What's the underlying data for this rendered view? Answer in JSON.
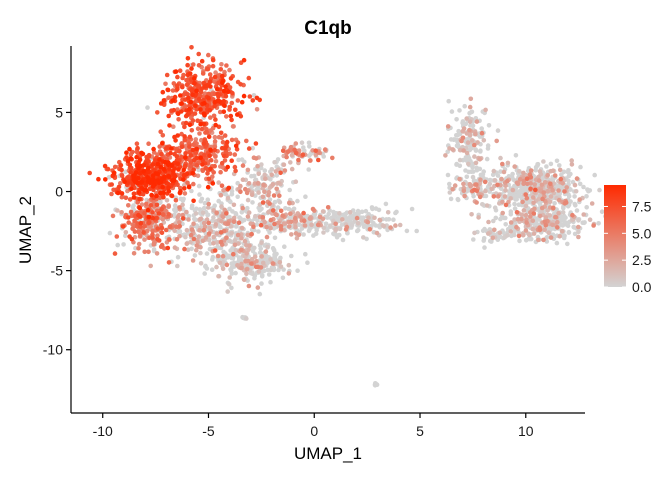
{
  "chart_data": {
    "type": "scatter",
    "title": "C1qb",
    "xlabel": "UMAP_1",
    "ylabel": "UMAP_2",
    "xlim": [
      -11.5,
      12.8
    ],
    "ylim": [
      -14,
      9.2
    ],
    "xticks": [
      -10,
      -5,
      0,
      5,
      10
    ],
    "yticks": [
      5,
      0,
      -5,
      -10
    ],
    "grid": false,
    "legend": {
      "placement": "right",
      "type": "colorbar",
      "ticks": [
        "7.5",
        "5.0",
        "2.5",
        "0.0"
      ],
      "tick_values": [
        7.5,
        5.0,
        2.5,
        0.0
      ],
      "range": [
        0,
        9.5
      ],
      "color_low": "#d3d3d3",
      "color_high": "#ff2a00"
    },
    "clusters": [
      {
        "cx": -5.2,
        "cy": 6.0,
        "sx": 0.9,
        "sy": 1.1,
        "n": 380,
        "expr": 7.0
      },
      {
        "cx": -7.8,
        "cy": 1.0,
        "sx": 0.9,
        "sy": 0.7,
        "n": 420,
        "expr": 8.0
      },
      {
        "cx": -5.5,
        "cy": 2.2,
        "sx": 1.0,
        "sy": 0.8,
        "n": 260,
        "expr": 6.2
      },
      {
        "cx": -7.8,
        "cy": -1.8,
        "sx": 0.8,
        "sy": 1.0,
        "n": 260,
        "expr": 5.0
      },
      {
        "cx": -4.8,
        "cy": -2.2,
        "sx": 1.2,
        "sy": 1.0,
        "n": 380,
        "expr": 2.0
      },
      {
        "cx": -3.0,
        "cy": -4.5,
        "sx": 0.9,
        "sy": 0.6,
        "n": 220,
        "expr": 1.5
      },
      {
        "cx": -2.5,
        "cy": 0.2,
        "sx": 0.8,
        "sy": 1.0,
        "n": 160,
        "expr": 2.0
      },
      {
        "cx": -1.3,
        "cy": -1.8,
        "sx": 0.8,
        "sy": 0.5,
        "n": 110,
        "expr": 2.5
      },
      {
        "cx": -0.6,
        "cy": 2.5,
        "sx": 0.6,
        "sy": 0.3,
        "n": 60,
        "expr": 3.5
      },
      {
        "cx": 1.6,
        "cy": -2.0,
        "sx": 1.2,
        "sy": 0.4,
        "n": 220,
        "expr": 0.9
      },
      {
        "cx": 7.3,
        "cy": 3.3,
        "sx": 0.5,
        "sy": 1.0,
        "n": 160,
        "expr": 1.6
      },
      {
        "cx": 7.6,
        "cy": 0.3,
        "sx": 0.6,
        "sy": 0.5,
        "n": 90,
        "expr": 2.0
      },
      {
        "cx": 10.5,
        "cy": 0.2,
        "sx": 1.1,
        "sy": 0.8,
        "n": 480,
        "expr": 1.6
      },
      {
        "cx": 10.8,
        "cy": -2.0,
        "sx": 1.0,
        "sy": 0.6,
        "n": 260,
        "expr": 1.4
      },
      {
        "cx": 8.4,
        "cy": -2.6,
        "sx": 0.5,
        "sy": 0.3,
        "n": 40,
        "expr": 1.0
      },
      {
        "cx": -3.3,
        "cy": -8.0,
        "sx": 0.08,
        "sy": 0.08,
        "n": 8,
        "expr": 0.5
      },
      {
        "cx": 2.9,
        "cy": -12.2,
        "sx": 0.05,
        "sy": 0.05,
        "n": 5,
        "expr": 0.2
      }
    ],
    "xtick_labels": [
      "-10",
      "-5",
      "0",
      "5",
      "10"
    ],
    "ytick_labels": [
      "5",
      "0",
      "-5",
      "-10"
    ]
  }
}
